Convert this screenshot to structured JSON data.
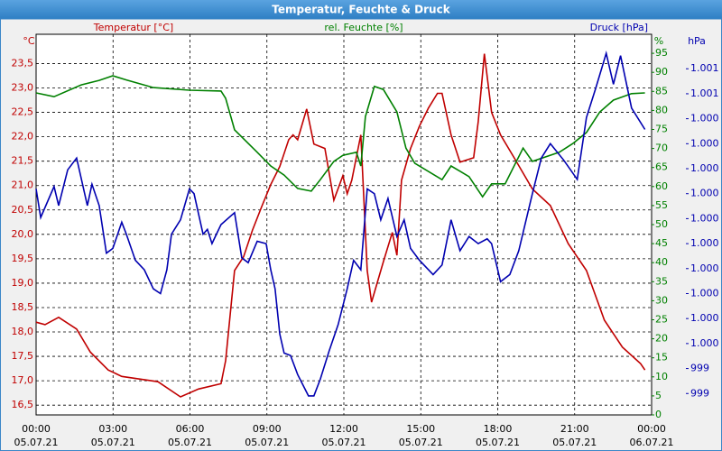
{
  "chart_data": {
    "type": "line",
    "title": "Temperatur, Feuchte & Druck",
    "y_unit": "°C",
    "y2_unit": "%",
    "y3_unit": "hPa",
    "xlim": [
      0,
      24
    ],
    "xticks": [
      {
        "value": 0,
        "label": "00:00",
        "date": "05.07.21"
      },
      {
        "value": 3,
        "label": "03:00",
        "date": "05.07.21"
      },
      {
        "value": 6,
        "label": "06:00",
        "date": "05.07.21"
      },
      {
        "value": 9,
        "label": "09:00",
        "date": "05.07.21"
      },
      {
        "value": 12,
        "label": "12:00",
        "date": "05.07.21"
      },
      {
        "value": 15,
        "label": "15:00",
        "date": "05.07.21"
      },
      {
        "value": 18,
        "label": "18:00",
        "date": "05.07.21"
      },
      {
        "value": 21,
        "label": "21:00",
        "date": "05.07.21"
      },
      {
        "value": 24,
        "label": "00:00",
        "date": "06.07.21"
      }
    ],
    "ylim": [
      16.3,
      24.1
    ],
    "yticks": [
      {
        "value": 16.5,
        "label": "16,5"
      },
      {
        "value": 17,
        "label": "17,0"
      },
      {
        "value": 17.5,
        "label": "17,5"
      },
      {
        "value": 18,
        "label": "18,0"
      },
      {
        "value": 18.5,
        "label": "18,5"
      },
      {
        "value": 19,
        "label": "19,0"
      },
      {
        "value": 19.5,
        "label": "19,5"
      },
      {
        "value": 20,
        "label": "20,0"
      },
      {
        "value": 20.5,
        "label": "20,5"
      },
      {
        "value": 21,
        "label": "21,0"
      },
      {
        "value": 21.5,
        "label": "21,5"
      },
      {
        "value": 22,
        "label": "22,0"
      },
      {
        "value": 22.5,
        "label": "22,5"
      },
      {
        "value": 23,
        "label": "23,0"
      },
      {
        "value": 23.5,
        "label": "23,5"
      }
    ],
    "y2lim": [
      0,
      100
    ],
    "y2ticks": [
      0,
      5,
      10,
      15,
      20,
      25,
      30,
      35,
      40,
      45,
      50,
      55,
      60,
      65,
      70,
      75,
      80,
      85,
      90,
      95
    ],
    "y3lim": [
      999.22,
      1000.82
    ],
    "y3ticks": [
      {
        "value": 999.31,
        "label": "999"
      },
      {
        "value": 999.415,
        "label": "999"
      },
      {
        "value": 999.52,
        "label": "1.000"
      },
      {
        "value": 999.625,
        "label": "1.000"
      },
      {
        "value": 999.73,
        "label": "1.000"
      },
      {
        "value": 999.835,
        "label": "1.000"
      },
      {
        "value": 999.94,
        "label": "1.000"
      },
      {
        "value": 1000.045,
        "label": "1.000"
      },
      {
        "value": 1000.15,
        "label": "1.000"
      },
      {
        "value": 1000.255,
        "label": "1.000"
      },
      {
        "value": 1000.36,
        "label": "1.000"
      },
      {
        "value": 1000.465,
        "label": "1.000"
      },
      {
        "value": 1000.57,
        "label": "1.001"
      },
      {
        "value": 1000.675,
        "label": "1.001"
      }
    ],
    "grid": true,
    "series": [
      {
        "name": "Temperatur [°C]",
        "color": "#c00000",
        "axis": "y",
        "x": [
          0,
          0.35,
          0.88,
          1.58,
          2.11,
          2.81,
          3.34,
          4.75,
          5.63,
          6.33,
          7.21,
          7.39,
          7.74,
          8.09,
          8.44,
          8.79,
          9.15,
          9.5,
          9.85,
          10.02,
          10.2,
          10.55,
          10.83,
          11.26,
          11.61,
          11.96,
          12.13,
          12.31,
          12.66,
          12.91,
          13.08,
          13.54,
          13.89,
          14.07,
          14.25,
          14.6,
          14.95,
          15.3,
          15.65,
          15.83,
          16.18,
          16.53,
          17.06,
          17.24,
          17.48,
          17.76,
          18.11,
          18.64,
          19.35,
          20.05,
          20.75,
          21.46,
          22.16,
          22.86,
          23.57,
          23.74
        ],
        "values": [
          18.2,
          18.15,
          18.3,
          18.06,
          17.59,
          17.22,
          17.09,
          16.98,
          16.67,
          16.83,
          16.94,
          17.41,
          19.26,
          19.54,
          20.09,
          20.56,
          21.02,
          21.39,
          21.94,
          22.04,
          21.94,
          22.57,
          21.85,
          21.76,
          20.7,
          21.2,
          20.83,
          21.11,
          22.04,
          19.26,
          18.61,
          19.44,
          20.04,
          19.57,
          21.11,
          21.76,
          22.22,
          22.59,
          22.89,
          22.89,
          22.04,
          21.48,
          21.57,
          22.31,
          23.7,
          22.5,
          22.04,
          21.57,
          20.93,
          20.59,
          19.81,
          19.26,
          18.24,
          17.69,
          17.35,
          17.22
        ]
      },
      {
        "name": "rel. Feuchte [%]",
        "color": "#008000",
        "axis": "y2",
        "x": [
          0,
          0.7,
          1.76,
          2.46,
          2.99,
          3.52,
          4.57,
          5.98,
          7.21,
          7.39,
          7.74,
          8.62,
          9.15,
          9.67,
          10.2,
          10.73,
          11.08,
          11.61,
          11.96,
          12.49,
          12.66,
          12.84,
          13.19,
          13.54,
          14.07,
          14.42,
          14.77,
          15.83,
          16.18,
          16.88,
          17.41,
          17.76,
          18.29,
          18.99,
          19.35,
          20.4,
          20.93,
          21.46,
          21.98,
          22.51,
          23.22,
          23.74
        ],
        "values": [
          84.6,
          83.6,
          86.7,
          87.9,
          89.1,
          88,
          86,
          85.3,
          85.1,
          83.2,
          74.9,
          69,
          65.4,
          63,
          59.5,
          58.8,
          61.8,
          66.6,
          68.2,
          69,
          65.4,
          78.4,
          86.3,
          85.5,
          79.6,
          70.1,
          66.1,
          61.8,
          65.4,
          62.6,
          57.3,
          60.7,
          60.7,
          70.1,
          66.6,
          69,
          71.3,
          74.2,
          79.6,
          82.7,
          84.4,
          84.6
        ]
      },
      {
        "name": "Druck [hPa]",
        "color": "#0000b0",
        "axis": "y3",
        "x": [
          0,
          0.18,
          0.7,
          0.88,
          1.23,
          1.58,
          2,
          2.18,
          2.46,
          2.74,
          2.99,
          3.34,
          3.52,
          3.87,
          4.22,
          4.57,
          4.85,
          5.1,
          5.28,
          5.63,
          5.98,
          6.16,
          6.51,
          6.68,
          6.86,
          7.03,
          7.21,
          7.74,
          8.02,
          8.27,
          8.62,
          8.97,
          9.15,
          9.32,
          9.5,
          9.67,
          9.92,
          10.2,
          10.62,
          10.83,
          11.08,
          11.43,
          11.78,
          12.13,
          12.38,
          12.66,
          12.91,
          13.19,
          13.44,
          13.72,
          14.07,
          14.35,
          14.6,
          14.95,
          15.48,
          15.83,
          16.18,
          16.53,
          16.88,
          17.24,
          17.59,
          17.76,
          18.11,
          18.47,
          18.82,
          19.35,
          19.7,
          20.05,
          20.58,
          21.1,
          21.46,
          21.81,
          22.23,
          22.51,
          22.79,
          23.22,
          23.74
        ],
        "values": [
          1000.17,
          1000.05,
          1000.18,
          1000.1,
          1000.25,
          1000.3,
          1000.1,
          1000.19,
          1000.1,
          999.9,
          999.92,
          1000.03,
          999.98,
          999.87,
          999.83,
          999.75,
          999.73,
          999.83,
          999.98,
          1000.04,
          1000.17,
          1000.15,
          999.98,
          1000,
          999.94,
          999.98,
          1000.02,
          1000.07,
          999.88,
          999.86,
          999.95,
          999.94,
          999.83,
          999.75,
          999.56,
          999.48,
          999.47,
          999.39,
          999.3,
          999.3,
          999.37,
          999.49,
          999.6,
          999.75,
          999.87,
          999.83,
          1000.17,
          1000.15,
          1000.04,
          1000.13,
          999.97,
          1000.04,
          999.92,
          999.87,
          999.81,
          999.85,
          1000.04,
          999.91,
          999.97,
          999.94,
          999.96,
          999.94,
          999.78,
          999.81,
          999.91,
          1000.15,
          1000.3,
          1000.36,
          1000.29,
          1000.21,
          1000.47,
          1000.59,
          1000.74,
          1000.61,
          1000.73,
          1000.51,
          1000.42
        ]
      }
    ]
  }
}
